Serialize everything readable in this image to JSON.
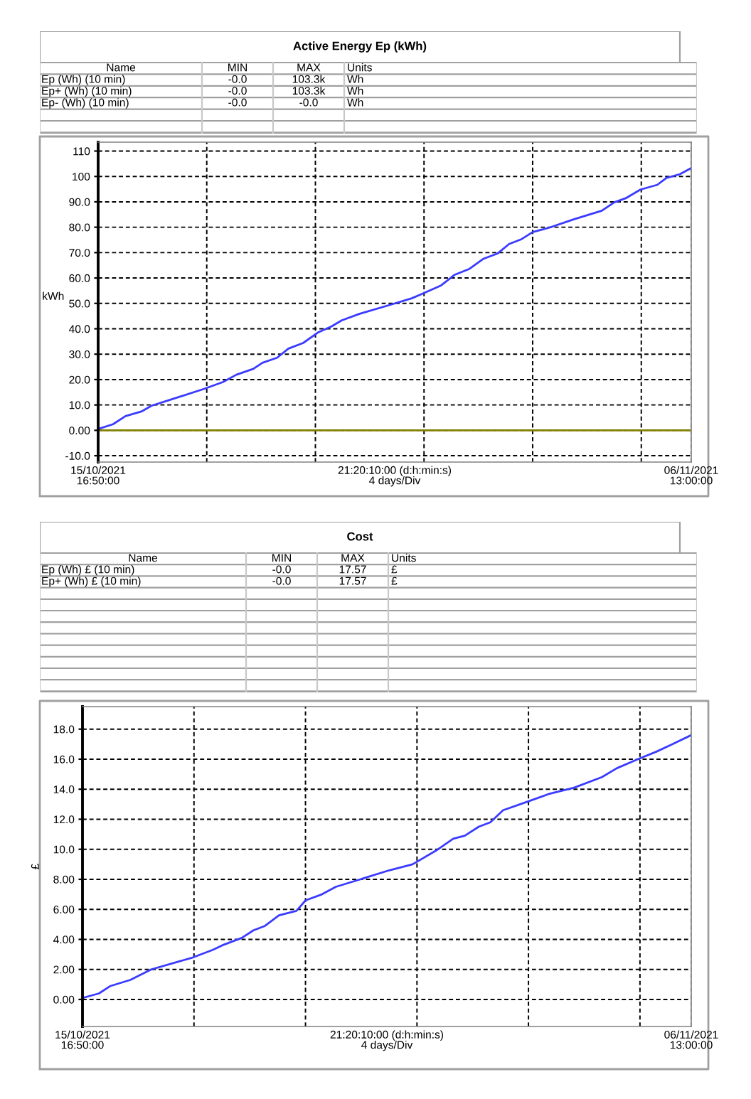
{
  "chart_data": [
    {
      "type": "other",
      "title": "Active Energy Ep (kWh)",
      "annotations": [
        "Name",
        "MIN",
        "MAX",
        "Units",
        "Ep (Wh) (10 min)",
        "-0.0",
        "103.3k",
        "Wh",
        "Ep+ (Wh) (10 min)",
        "-0.0",
        "103.3k",
        "Wh",
        "Ep- (Wh) (10 min)",
        "-0.0",
        "-0.0",
        "Wh"
      ]
    },
    {
      "type": "line",
      "ylabel": "kWh",
      "xlabel": "21:20:10:00 (d:h:min:s)\n4 days/Div",
      "grid": true,
      "line_style": "solid",
      "xlim": [
        "2021-10-15T16:50",
        "2021-11-06T13:00"
      ],
      "xticks": [
        {
          "value": "2021-10-15T16:50",
          "label": "15/10/2021\n16:50:00"
        },
        {
          "value": "2021-10-19T16:50",
          "label": null
        },
        {
          "value": "2021-10-23T16:50",
          "label": null
        },
        {
          "value": "2021-10-27T16:50",
          "label": null
        },
        {
          "value": "2021-10-31T16:50",
          "label": null
        },
        {
          "value": "2021-11-04T16:50",
          "label": null
        },
        {
          "value": "2021-11-06T13:00",
          "label": "06/11/2021\n13:00:00"
        }
      ],
      "ylim": [
        -12.5,
        113.5
      ],
      "yticks": [
        {
          "value": -10,
          "label": "-10.0"
        },
        {
          "value": 0,
          "label": "0.00"
        },
        {
          "value": 10,
          "label": "10.0"
        },
        {
          "value": 20,
          "label": "20.0"
        },
        {
          "value": 30,
          "label": "30.0"
        },
        {
          "value": 40,
          "label": "40.0"
        },
        {
          "value": 50,
          "label": "50.0"
        },
        {
          "value": 60,
          "label": "60.0"
        },
        {
          "value": 70,
          "label": "70.0"
        },
        {
          "value": 80,
          "label": "80.0"
        },
        {
          "value": 90,
          "label": "90.0"
        },
        100,
        110
      ],
      "series": [
        {
          "color": "#3b3bff",
          "x": [
            "2021-10-15T16:50",
            "2021-10-16T06:00",
            "2021-10-16T17:00",
            "2021-10-17T07:00",
            "2021-10-17T16:00",
            "2021-10-18T09:00",
            "2021-10-19T15:00",
            "2021-10-20T07:00",
            "2021-10-20T19:00",
            "2021-10-21T10:00",
            "2021-10-21T18:00",
            "2021-10-22T07:00",
            "2021-10-22T17:00",
            "2021-10-23T06:00",
            "2021-10-23T19:00",
            "2021-10-24T07:00",
            "2021-10-24T16:00",
            "2021-10-25T08:00",
            "2021-10-26T10:00",
            "2021-10-27T06:00",
            "2021-10-27T15:00",
            "2021-10-28T08:00",
            "2021-10-28T20:00",
            "2021-10-29T09:00",
            "2021-10-29T21:00",
            "2021-10-30T10:00",
            "2021-10-30T20:00",
            "2021-10-31T07:00",
            "2021-10-31T17:00",
            "2021-11-01T08:00",
            "2021-11-02T05:00",
            "2021-11-03T06:00",
            "2021-11-03T17:00",
            "2021-11-04T03:00",
            "2021-11-04T16:00",
            "2021-11-05T07:00",
            "2021-11-05T15:00",
            "2021-11-06T03:00",
            "2021-11-06T13:00"
          ],
          "values": [
            0.5,
            2.4,
            5.6,
            7.4,
            9.7,
            12.1,
            16.4,
            19.0,
            21.9,
            24.2,
            26.6,
            28.6,
            32.2,
            34.4,
            38.5,
            40.9,
            43.3,
            45.9,
            49.3,
            52.0,
            53.7,
            57.1,
            61.3,
            63.6,
            67.5,
            69.7,
            73.4,
            75.3,
            78.1,
            79.9,
            83.1,
            86.5,
            89.8,
            91.4,
            94.8,
            96.7,
            99.4,
            100.9,
            103.3
          ]
        },
        {
          "color": "#808000",
          "x": [
            "2021-10-15T16:50",
            "2021-11-06T13:00"
          ],
          "values": [
            0,
            0
          ]
        }
      ]
    },
    {
      "type": "other",
      "title": "Cost",
      "annotations": [
        "Name",
        "MIN",
        "MAX",
        "Units",
        "Ep (Wh) £ (10 min)",
        "-0.0",
        "17.57",
        "£",
        "Ep+ (Wh) £ (10 min)",
        "-0.0",
        "17.57",
        "£"
      ]
    },
    {
      "type": "line",
      "ylabel": "£",
      "xlabel": "21:20:10:00 (d:h:min:s)\n4 days/Div",
      "grid": true,
      "line_style": "solid",
      "xlim": [
        "2021-10-15T16:50",
        "2021-11-06T13:00"
      ],
      "xticks": [
        {
          "value": "2021-10-15T16:50",
          "label": "15/10/2021\n16:50:00"
        },
        {
          "value": "2021-10-19T16:50",
          "label": null
        },
        {
          "value": "2021-10-23T16:50",
          "label": null
        },
        {
          "value": "2021-10-27T16:50",
          "label": null
        },
        {
          "value": "2021-10-31T16:50",
          "label": null
        },
        {
          "value": "2021-11-04T16:50",
          "label": null
        },
        {
          "value": "2021-11-06T13:00",
          "label": "06/11/2021\n13:00:00"
        }
      ],
      "ylim": [
        -1.8,
        19.5
      ],
      "yticks": [
        {
          "value": 0,
          "label": "0.00"
        },
        {
          "value": 2,
          "label": "2.00"
        },
        {
          "value": 4,
          "label": "4.00"
        },
        {
          "value": 6,
          "label": "6.00"
        },
        {
          "value": 8,
          "label": "8.00"
        },
        {
          "value": 10,
          "label": "10.0"
        },
        {
          "value": 12,
          "label": "12.0"
        },
        {
          "value": 14,
          "label": "14.0"
        },
        {
          "value": 16,
          "label": "16.0"
        },
        {
          "value": 18,
          "label": "18.0"
        }
      ],
      "series": [
        {
          "color": "#3b3bff",
          "x": [
            "2021-10-15T16:50",
            "2021-10-16T07:00",
            "2021-10-16T17:00",
            "2021-10-17T10:00",
            "2021-10-18T04:00",
            "2021-10-19T16:00",
            "2021-10-20T09:00",
            "2021-10-20T17:00",
            "2021-10-21T10:00",
            "2021-10-21T20:00",
            "2021-10-22T06:00",
            "2021-10-22T18:00",
            "2021-10-23T09:00",
            "2021-10-23T17:00",
            "2021-10-24T07:00",
            "2021-10-24T19:00",
            "2021-10-25T16:00",
            "2021-10-26T17:00",
            "2021-10-27T13:00",
            "2021-10-28T09:00",
            "2021-10-29T00:00",
            "2021-10-29T10:00",
            "2021-10-29T22:00",
            "2021-10-30T08:00",
            "2021-10-30T19:00",
            "2021-10-31T17:00",
            "2021-11-01T11:00",
            "2021-11-02T08:00",
            "2021-11-03T08:00",
            "2021-11-03T21:00",
            "2021-11-04T15:00",
            "2021-11-05T07:00",
            "2021-11-05T18:00",
            "2021-11-06T13:00"
          ],
          "values": [
            0.1,
            0.4,
            0.9,
            1.3,
            2.0,
            2.8,
            3.3,
            3.6,
            4.1,
            4.6,
            4.9,
            5.6,
            5.9,
            6.6,
            7.0,
            7.5,
            8.0,
            8.6,
            9.0,
            9.9,
            10.7,
            10.9,
            11.5,
            11.8,
            12.6,
            13.2,
            13.7,
            14.1,
            14.8,
            15.4,
            16.0,
            16.5,
            16.9,
            17.6
          ]
        }
      ]
    }
  ]
}
